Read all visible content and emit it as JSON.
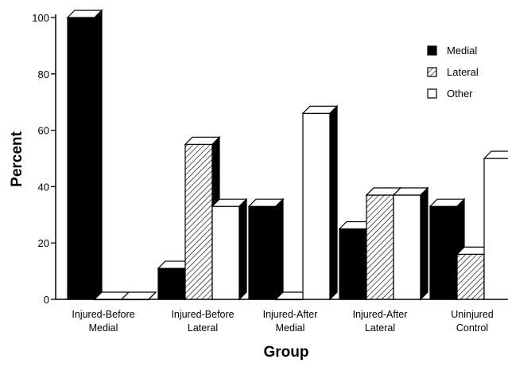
{
  "chart_data": {
    "type": "bar",
    "style": "3d-clustered",
    "title": "",
    "xlabel": "Group",
    "ylabel": "Percent",
    "ylim": [
      0,
      100
    ],
    "yticks": [
      "0",
      "20",
      "40",
      "60",
      "80",
      "100"
    ],
    "categories": [
      [
        "Injured-Before",
        "Medial"
      ],
      [
        "Injured-Before",
        "Lateral"
      ],
      [
        "Injured-After",
        "Medial"
      ],
      [
        "Injured-After",
        "Lateral"
      ],
      [
        "Uninjured",
        "Control"
      ]
    ],
    "series": [
      {
        "name": "Medial",
        "pattern": "solid",
        "color": "#000000",
        "values": [
          100,
          11,
          33,
          25,
          33
        ]
      },
      {
        "name": "Lateral",
        "pattern": "hatched",
        "color": "#000000",
        "values": [
          0,
          55,
          0,
          37,
          16
        ]
      },
      {
        "name": "Other",
        "pattern": "hollow",
        "color": "#ffffff",
        "values": [
          0,
          33,
          66,
          37,
          50
        ]
      }
    ],
    "legend": {
      "position": "top-right"
    },
    "grid": false
  }
}
